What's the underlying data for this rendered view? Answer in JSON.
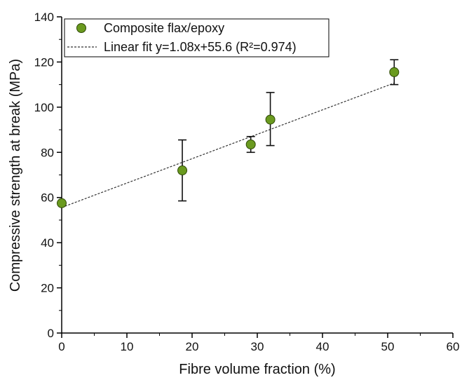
{
  "chart_data": {
    "type": "scatter",
    "xlabel": "Fibre volume fraction (%)",
    "ylabel": "Compressive strength at break (MPa)",
    "xlim": [
      0,
      60
    ],
    "ylim": [
      0,
      140
    ],
    "x_ticks": [
      0,
      10,
      20,
      30,
      40,
      50,
      60
    ],
    "y_ticks": [
      0,
      20,
      40,
      60,
      80,
      100,
      120,
      140
    ],
    "x_tick_labels": [
      "0",
      "10",
      "20",
      "30",
      "40",
      "50",
      "60"
    ],
    "y_tick_labels": [
      "0",
      "20",
      "40",
      "60",
      "80",
      "100",
      "120",
      "140"
    ],
    "grid": false,
    "legend_position": "top-left",
    "series": [
      {
        "name": "Composite flax/epoxy",
        "kind": "points",
        "color": "#6a9a1f",
        "x": [
          0,
          18.5,
          29,
          32,
          51
        ],
        "y": [
          57.5,
          72,
          83.5,
          94.5,
          115.5
        ],
        "err_low": [
          57.5,
          58.5,
          80,
          83,
          110
        ],
        "err_high": [
          57.5,
          85.5,
          87,
          106.5,
          121
        ]
      },
      {
        "name": "Linear fit y=1.08x+55.6 (R²=0.974)",
        "kind": "line",
        "style": "dashed",
        "color": "#333333",
        "slope": 1.08,
        "intercept": 55.6,
        "x_range": [
          0,
          51
        ]
      }
    ]
  }
}
